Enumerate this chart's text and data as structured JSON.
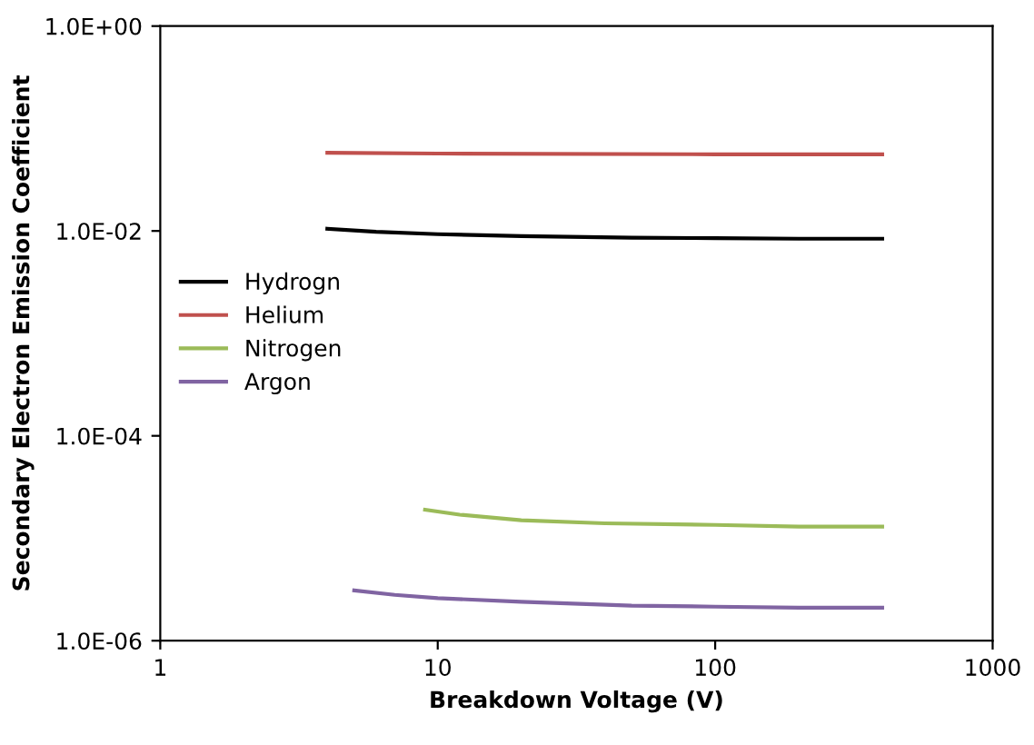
{
  "chart_data": {
    "type": "line",
    "xlabel": "Breakdown Voltage (V)",
    "ylabel": "Secondary Electron Emission Coefficient",
    "log": "xy",
    "xlim": [
      1,
      1000
    ],
    "ylim": [
      1e-06,
      1
    ],
    "xticks": [
      1,
      10,
      100,
      1000
    ],
    "yticks": [
      {
        "value": 1e-06,
        "label": "1.0E-06"
      },
      {
        "value": 0.0001,
        "label": "1.0E-04"
      },
      {
        "value": 0.01,
        "label": "1.0E-02"
      },
      {
        "value": 1,
        "label": "1.0E+00"
      }
    ],
    "grid": false,
    "legend": "center left",
    "marker": "none",
    "line_style": "solid",
    "series": [
      {
        "name": "Hydrogn",
        "color": "#000000",
        "x": [
          4,
          6,
          10,
          20,
          50,
          100,
          200,
          400
        ],
        "values": [
          0.0105,
          0.0098,
          0.0093,
          0.0089,
          0.0086,
          0.0085,
          0.0084,
          0.0084
        ]
      },
      {
        "name": "Helium",
        "color": "#c0504d",
        "x": [
          4,
          10,
          100,
          400
        ],
        "values": [
          0.058,
          0.057,
          0.056,
          0.056
        ]
      },
      {
        "name": "Nitrogen",
        "color": "#9bbb59",
        "x": [
          9,
          12,
          20,
          40,
          100,
          200,
          400
        ],
        "values": [
          1.9e-05,
          1.7e-05,
          1.5e-05,
          1.4e-05,
          1.35e-05,
          1.3e-05,
          1.3e-05
        ]
      },
      {
        "name": "Argon",
        "color": "#8064a2",
        "x": [
          5,
          7,
          10,
          20,
          50,
          100,
          200,
          400
        ],
        "values": [
          3.1e-06,
          2.8e-06,
          2.6e-06,
          2.4e-06,
          2.2e-06,
          2.15e-06,
          2.1e-06,
          2.1e-06
        ]
      }
    ]
  }
}
